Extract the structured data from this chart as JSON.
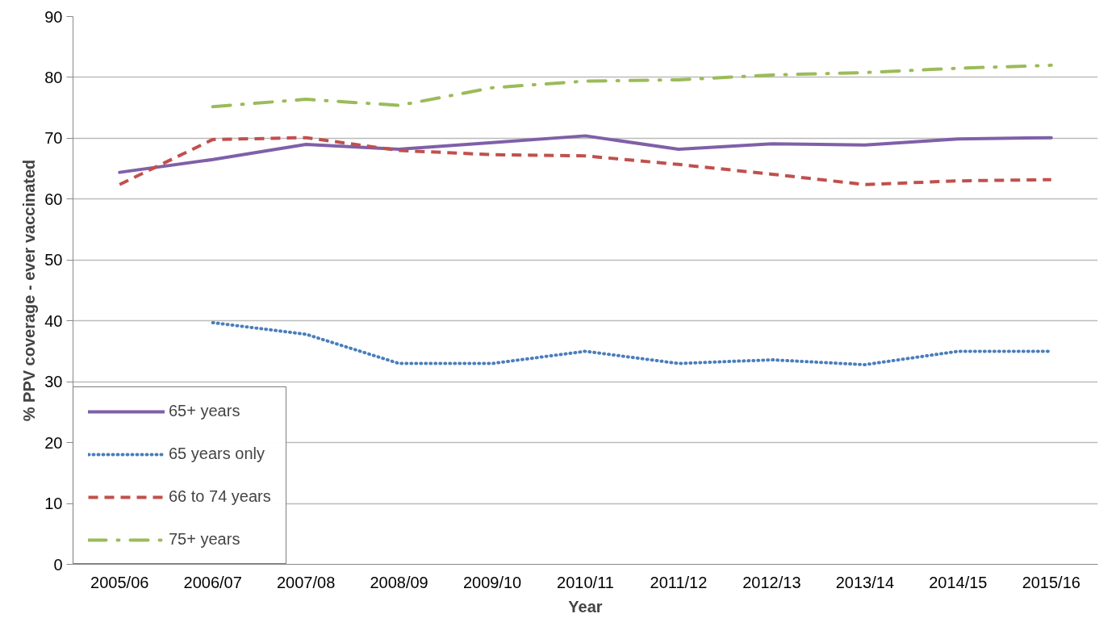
{
  "chart_data": {
    "type": "line",
    "xlabel": "Year",
    "ylabel": "% PPV coverage - ever vaccinated",
    "categories": [
      "2005/06",
      "2006/07",
      "2007/08",
      "2008/09",
      "2009/10",
      "2010/11",
      "2011/12",
      "2012/13",
      "2013/14",
      "2014/15",
      "2015/16"
    ],
    "series": [
      {
        "name": "65+ years",
        "color": "#7f60a8",
        "line_style": "solid",
        "values": [
          64.4,
          66.5,
          69.0,
          68.2,
          69.3,
          70.4,
          68.2,
          69.1,
          68.9,
          69.9,
          70.1
        ]
      },
      {
        "name": "65 years only",
        "color": "#4a7ebb",
        "line_style": "dotted",
        "values": [
          null,
          39.7,
          37.8,
          33.0,
          33.0,
          35.0,
          33.0,
          33.6,
          32.8,
          35.0,
          35.0
        ]
      },
      {
        "name": "66 to 74 years",
        "color": "#c0504d",
        "line_style": "dashed",
        "values": [
          62.4,
          69.8,
          70.1,
          68.0,
          67.3,
          67.1,
          65.7,
          64.1,
          62.4,
          63.0,
          63.2
        ]
      },
      {
        "name": "75+ years",
        "color": "#9bbb59",
        "line_style": "dashdot",
        "values": [
          null,
          75.2,
          76.4,
          75.4,
          78.3,
          79.4,
          79.6,
          80.4,
          80.8,
          81.5,
          82.0
        ]
      }
    ],
    "ylim": [
      0,
      90
    ],
    "yticks": [
      0,
      10,
      20,
      30,
      40,
      50,
      60,
      70,
      80,
      90
    ],
    "grid": "y",
    "legend": "bottom left"
  }
}
